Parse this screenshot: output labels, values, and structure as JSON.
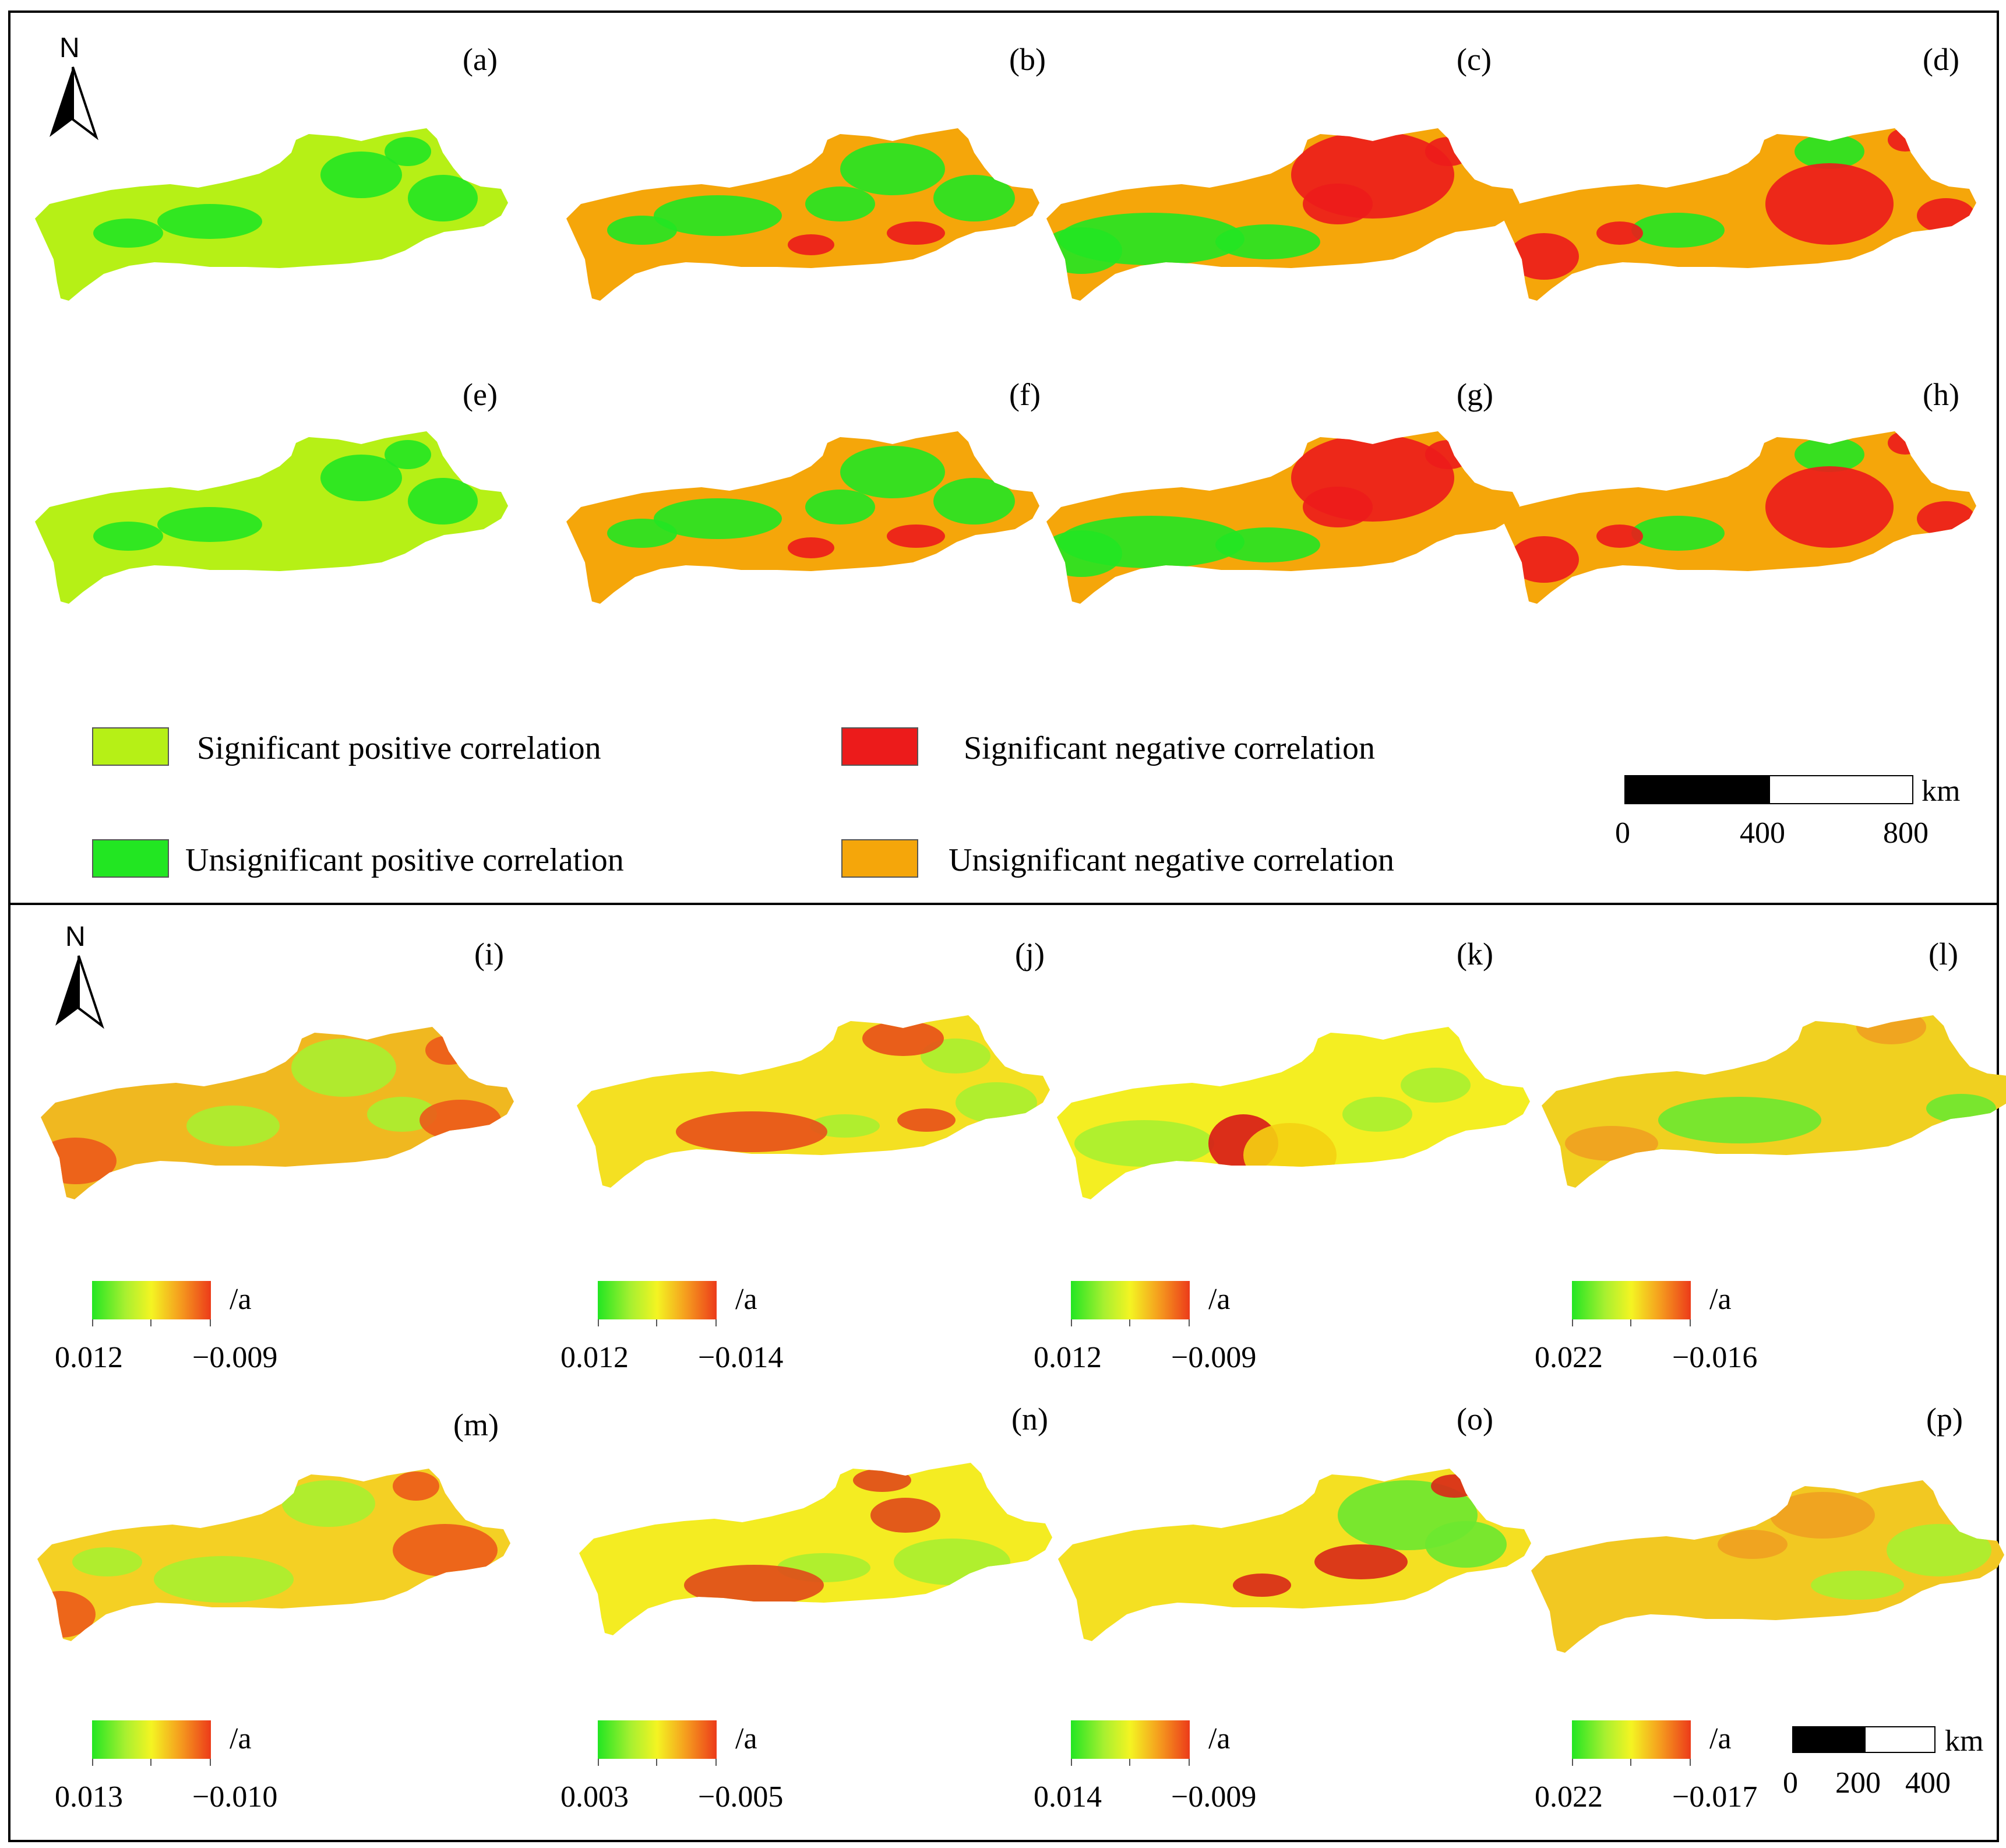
{
  "north_letter": "N",
  "top_panels": [
    {
      "id": "a",
      "label": "(a)",
      "style": "lime"
    },
    {
      "id": "b",
      "label": "(b)",
      "style": "mix-orange"
    },
    {
      "id": "c",
      "label": "(c)",
      "style": "red-north"
    },
    {
      "id": "d",
      "label": "(d)",
      "style": "red-center"
    },
    {
      "id": "e",
      "label": "(e)",
      "style": "lime"
    },
    {
      "id": "f",
      "label": "(f)",
      "style": "mix-orange"
    },
    {
      "id": "g",
      "label": "(g)",
      "style": "red-north"
    },
    {
      "id": "h",
      "label": "(h)",
      "style": "red-center"
    }
  ],
  "legend": {
    "sig_pos": "Significant positive correlation",
    "unsig_pos": "Unsignificant positive correlation",
    "sig_neg": "Significant negative correlation",
    "unsig_neg": "Unsignificant negative correlation",
    "colors": {
      "sig_pos": "#b6f016",
      "unsig_pos": "#22e622",
      "sig_neg": "#ec1b1b",
      "unsig_neg": "#f5a60a"
    }
  },
  "scale_top": {
    "unit": "km",
    "ticks": [
      "0",
      "400",
      "800"
    ]
  },
  "bottom_panels": [
    {
      "id": "i",
      "label": "(i)",
      "unit": "/a",
      "low": "0.012",
      "high": "−0.009"
    },
    {
      "id": "j",
      "label": "(j)",
      "unit": "/a",
      "low": "0.012",
      "high": "−0.014"
    },
    {
      "id": "k",
      "label": "(k)",
      "unit": "/a",
      "low": "0.012",
      "high": "−0.009"
    },
    {
      "id": "l",
      "label": "(l)",
      "unit": "/a",
      "low": "0.022",
      "high": "−0.016"
    },
    {
      "id": "m",
      "label": "(m)",
      "unit": "/a",
      "low": "0.013",
      "high": "−0.010"
    },
    {
      "id": "n",
      "label": "(n)",
      "unit": "/a",
      "low": "0.003",
      "high": "−0.005"
    },
    {
      "id": "o",
      "label": "(o)",
      "unit": "/a",
      "low": "0.014",
      "high": "−0.009"
    },
    {
      "id": "p",
      "label": "(p)",
      "unit": "/a",
      "low": "0.022",
      "high": "−0.017"
    }
  ],
  "scale_bottom": {
    "unit": "km",
    "ticks": [
      "0",
      "200",
      "400"
    ]
  }
}
